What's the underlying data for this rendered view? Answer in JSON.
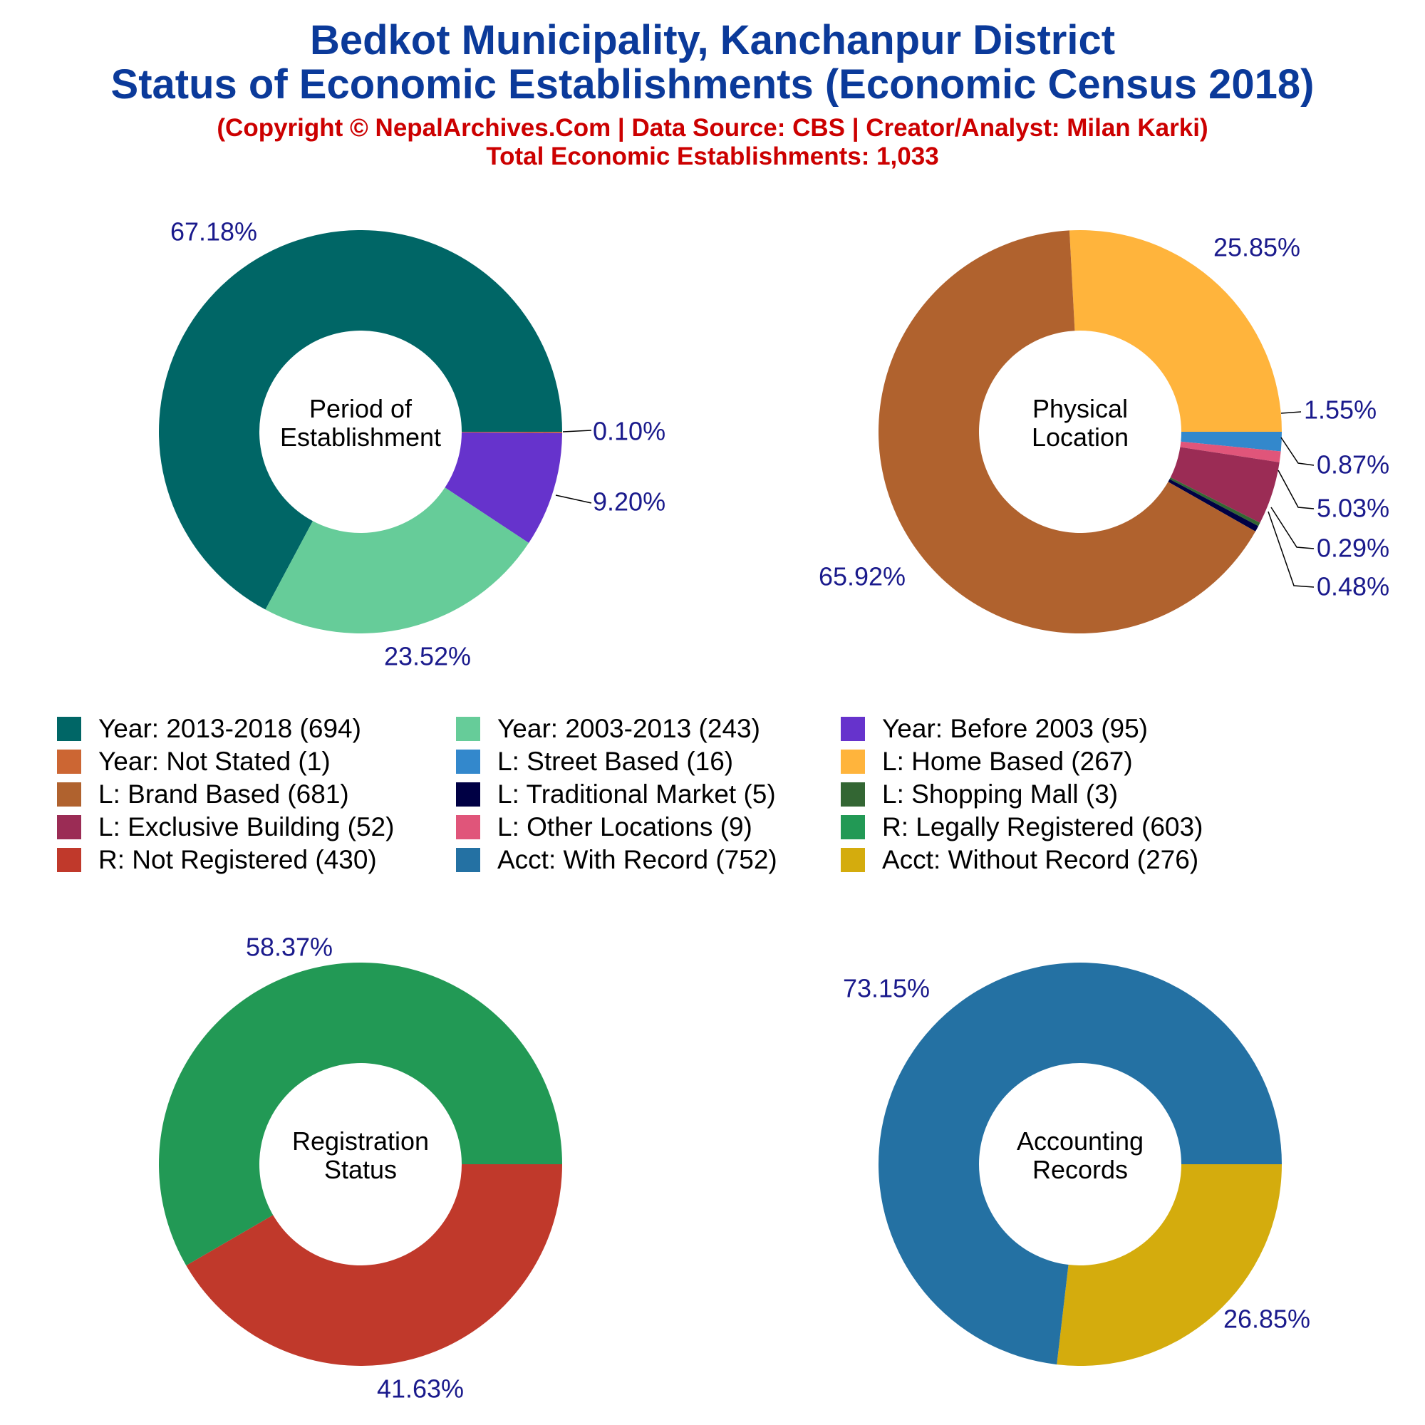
{
  "header": {
    "title_line1": "Bedkot Municipality, Kanchanpur District",
    "title_line2": "Status of Economic Establishments (Economic Census 2018)",
    "credit": "(Copyright © NepalArchives.Com | Data Source: CBS | Creator/Analyst: Milan Karki)",
    "total": "Total Economic Establishments: 1,033"
  },
  "legend": [
    {
      "label": "Year: 2013-2018 (694)",
      "color": "#006666"
    },
    {
      "label": "Year: 2003-2013 (243)",
      "color": "#66cc99"
    },
    {
      "label": "Year: Before 2003 (95)",
      "color": "#6633cc"
    },
    {
      "label": "Year: Not Stated (1)",
      "color": "#cc6633"
    },
    {
      "label": "L: Street Based (16)",
      "color": "#3388cc"
    },
    {
      "label": "L: Home Based (267)",
      "color": "#ffb43c"
    },
    {
      "label": "L: Brand Based (681)",
      "color": "#b0622e"
    },
    {
      "label": "L: Traditional Market (5)",
      "color": "#000044"
    },
    {
      "label": "L: Shopping Mall (3)",
      "color": "#336633"
    },
    {
      "label": "L: Exclusive Building (52)",
      "color": "#9b2c55"
    },
    {
      "label": "L: Other Locations (9)",
      "color": "#e0557a"
    },
    {
      "label": "R: Legally Registered (603)",
      "color": "#229955"
    },
    {
      "label": "R: Not Registered (430)",
      "color": "#c0392b"
    },
    {
      "label": "Acct: With Record (752)",
      "color": "#2471a3"
    },
    {
      "label": "Acct: Without Record (276)",
      "color": "#d4ac0d"
    }
  ],
  "chart_data": [
    {
      "type": "pie",
      "center_label": [
        "Period of",
        "Establishment"
      ],
      "slices": [
        {
          "name": "Year: 2013-2018",
          "value": 694,
          "pct_label": "67.18%",
          "color": "#006666"
        },
        {
          "name": "Year: Not Stated",
          "value": 1,
          "pct_label": "0.10%",
          "color": "#cc6633"
        },
        {
          "name": "Year: Before 2003",
          "value": 95,
          "pct_label": "9.20%",
          "color": "#6633cc"
        },
        {
          "name": "Year: 2003-2013",
          "value": 243,
          "pct_label": "23.52%",
          "color": "#66cc99"
        }
      ]
    },
    {
      "type": "pie",
      "center_label": [
        "Physical",
        "Location"
      ],
      "slices": [
        {
          "name": "L: Home Based",
          "value": 267,
          "pct_label": "25.85%",
          "color": "#ffb43c"
        },
        {
          "name": "L: Street Based",
          "value": 16,
          "pct_label": "1.55%",
          "color": "#3388cc"
        },
        {
          "name": "L: Other Locations",
          "value": 9,
          "pct_label": "0.87%",
          "color": "#e0557a"
        },
        {
          "name": "L: Exclusive Building",
          "value": 52,
          "pct_label": "5.03%",
          "color": "#9b2c55"
        },
        {
          "name": "L: Shopping Mall",
          "value": 3,
          "pct_label": "0.29%",
          "color": "#336633"
        },
        {
          "name": "L: Traditional Market",
          "value": 5,
          "pct_label": "0.48%",
          "color": "#000044"
        },
        {
          "name": "L: Brand Based",
          "value": 681,
          "pct_label": "65.92%",
          "color": "#b0622e"
        }
      ]
    },
    {
      "type": "pie",
      "center_label": [
        "Registration",
        "Status"
      ],
      "slices": [
        {
          "name": "R: Not Registered",
          "value": 430,
          "pct_label": "41.63%",
          "color": "#c0392b"
        },
        {
          "name": "R: Legally Registered",
          "value": 603,
          "pct_label": "58.37%",
          "color": "#229955"
        }
      ]
    },
    {
      "type": "pie",
      "center_label": [
        "Accounting",
        "Records"
      ],
      "slices": [
        {
          "name": "Acct: Without Record",
          "value": 276,
          "pct_label": "26.85%",
          "color": "#d4ac0d"
        },
        {
          "name": "Acct: With Record",
          "value": 752,
          "pct_label": "73.15%",
          "color": "#2471a3"
        }
      ]
    }
  ]
}
